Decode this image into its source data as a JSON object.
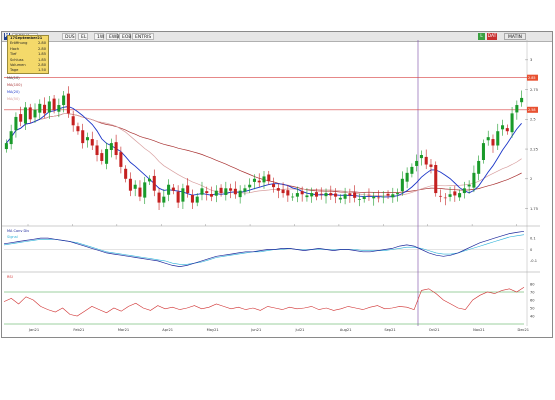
{
  "toolbar": {
    "logo": "M",
    "symbol": "DEBY0",
    "items": [
      "DUS",
      "EL",
      "1W",
      "EWB",
      "EOB",
      "ENTRIS"
    ],
    "buttons": [
      "L",
      "DAT",
      "MATIN"
    ]
  },
  "datebox": {
    "title": "17September21",
    "rows": [
      {
        "label": "Eröffnung",
        "value": "2.80"
      },
      {
        "label": "Hoch",
        "value": "2.80"
      },
      {
        "label": "Tief",
        "value": "1.85"
      },
      {
        "label": "Schluss",
        "value": "1.85"
      },
      {
        "label": "Volumen",
        "value": "2.80"
      },
      {
        "label": "Tage",
        "value": "1.50"
      }
    ]
  },
  "colors": {
    "bull": "#1a9a2a",
    "bear": "#c42020",
    "ma_short": "#1a35c8",
    "ma_mid": "#d8a0a0",
    "ma_long": "#a83030",
    "macd": "#1e2a9c",
    "signal": "#2ab0d8",
    "rsi": "#d03030",
    "level": "#d84040",
    "marker_tag": "#e85030",
    "vline": "#8a60b0"
  },
  "chart_data": [
    {
      "type": "candlestick",
      "title": "",
      "x_labels": [
        "Jan21",
        "Feb21",
        "Mar21",
        "Apr21",
        "May21",
        "Jun21",
        "Jul21",
        "Aug21",
        "Sep21",
        "Oct21",
        "Nov21",
        "Dec21"
      ],
      "y_ticks": [
        "3",
        "2.75",
        "2.5",
        "2.25",
        "2",
        "1.75"
      ],
      "ylim": [
        1.62,
        3.15
      ],
      "indicator_labels": [
        "MA(10)",
        "MA(100)",
        "MA(20)",
        "MA(50)"
      ],
      "horizontal_levels": [
        2.85,
        2.58
      ],
      "level_tags": [
        "2.85",
        "2.58"
      ],
      "closes": [
        2.3,
        2.4,
        2.52,
        2.48,
        2.6,
        2.5,
        2.58,
        2.63,
        2.55,
        2.65,
        2.58,
        2.62,
        2.7,
        2.55,
        2.45,
        2.4,
        2.3,
        2.35,
        2.28,
        2.2,
        2.15,
        2.25,
        2.3,
        2.2,
        2.1,
        2.0,
        1.9,
        1.95,
        1.85,
        1.97,
        2.0,
        1.9,
        1.8,
        1.85,
        1.95,
        1.9,
        1.8,
        1.92,
        1.88,
        1.8,
        1.85,
        1.92,
        1.88,
        1.85,
        1.9,
        1.88,
        1.92,
        1.9,
        1.87,
        1.9,
        1.92,
        1.95,
        2.0,
        1.97,
        2.02,
        1.98,
        1.93,
        1.9,
        1.88,
        1.86,
        1.85,
        1.88,
        1.87,
        1.86,
        1.88,
        1.85,
        1.87,
        1.88,
        1.86,
        1.85,
        1.84,
        1.87,
        1.86,
        1.84,
        1.83,
        1.85,
        1.86,
        1.85,
        1.84,
        1.85,
        1.86,
        1.87,
        1.88,
        2.0,
        2.05,
        2.1,
        2.15,
        2.2,
        2.12,
        2.1,
        1.88,
        1.85,
        1.84,
        1.87,
        1.86,
        1.88,
        1.92,
        1.95,
        2.05,
        2.15,
        2.3,
        2.35,
        2.28,
        2.4,
        2.45,
        2.4,
        2.55,
        2.62,
        2.68
      ]
    },
    {
      "type": "line",
      "title": "",
      "series": [
        {
          "name": "MA Conv Div",
          "values": [
            0.05,
            0.06,
            0.07,
            0.08,
            0.09,
            0.1,
            0.1,
            0.09,
            0.08,
            0.07,
            0.05,
            0.03,
            0.01,
            -0.01,
            -0.03,
            -0.04,
            -0.05,
            -0.06,
            -0.07,
            -0.08,
            -0.09,
            -0.1,
            -0.12,
            -0.14,
            -0.15,
            -0.14,
            -0.12,
            -0.1,
            -0.08,
            -0.06,
            -0.05,
            -0.04,
            -0.03,
            -0.02,
            -0.02,
            -0.01,
            0.0,
            0.0,
            0.01,
            0.01,
            0.0,
            -0.01,
            0.0,
            0.01,
            0.0,
            -0.01,
            0.0,
            0.0,
            -0.01,
            -0.02,
            -0.02,
            -0.01,
            0.0,
            0.01,
            0.03,
            0.04,
            0.03,
            0.0,
            -0.03,
            -0.05,
            -0.06,
            -0.05,
            -0.03,
            0.0,
            0.03,
            0.06,
            0.08,
            0.1,
            0.12,
            0.14,
            0.15,
            0.16
          ]
        },
        {
          "name": "Signal",
          "values": [
            0.04,
            0.05,
            0.06,
            0.07,
            0.08,
            0.09,
            0.09,
            0.09,
            0.08,
            0.07,
            0.06,
            0.04,
            0.02,
            0.0,
            -0.02,
            -0.03,
            -0.04,
            -0.05,
            -0.06,
            -0.07,
            -0.08,
            -0.09,
            -0.1,
            -0.12,
            -0.13,
            -0.13,
            -0.12,
            -0.11,
            -0.09,
            -0.07,
            -0.06,
            -0.05,
            -0.04,
            -0.03,
            -0.02,
            -0.02,
            -0.01,
            0.0,
            0.0,
            0.01,
            0.0,
            0.0,
            0.0,
            0.0,
            0.0,
            0.0,
            0.0,
            0.0,
            0.0,
            -0.01,
            -0.01,
            -0.01,
            -0.01,
            0.0,
            0.01,
            0.02,
            0.02,
            0.01,
            -0.01,
            -0.03,
            -0.04,
            -0.04,
            -0.03,
            -0.01,
            0.01,
            0.03,
            0.05,
            0.07,
            0.09,
            0.11,
            0.12,
            0.13
          ]
        }
      ],
      "y_ticks": [
        "0.1",
        "0",
        "-0.1"
      ],
      "ylim": [
        -0.18,
        0.18
      ]
    },
    {
      "type": "line",
      "title": "",
      "series": [
        {
          "name": "RSI",
          "values": [
            58,
            62,
            55,
            64,
            60,
            52,
            48,
            45,
            50,
            42,
            40,
            46,
            52,
            48,
            44,
            50,
            46,
            52,
            56,
            50,
            47,
            53,
            49,
            51,
            48,
            50,
            53,
            49,
            51,
            55,
            52,
            49,
            51,
            48,
            50,
            47,
            52,
            50,
            48,
            51,
            49,
            50,
            52,
            48,
            50,
            47,
            49,
            52,
            50,
            48,
            51,
            53,
            49,
            50,
            52,
            51,
            48,
            72,
            74,
            68,
            60,
            55,
            50,
            48,
            60,
            66,
            70,
            68,
            72,
            74,
            70,
            76
          ]
        }
      ],
      "y_ticks": [
        "80",
        "70",
        "60",
        "50",
        "40"
      ],
      "levels": [
        70,
        30
      ],
      "ylim": [
        30,
        90
      ]
    }
  ]
}
